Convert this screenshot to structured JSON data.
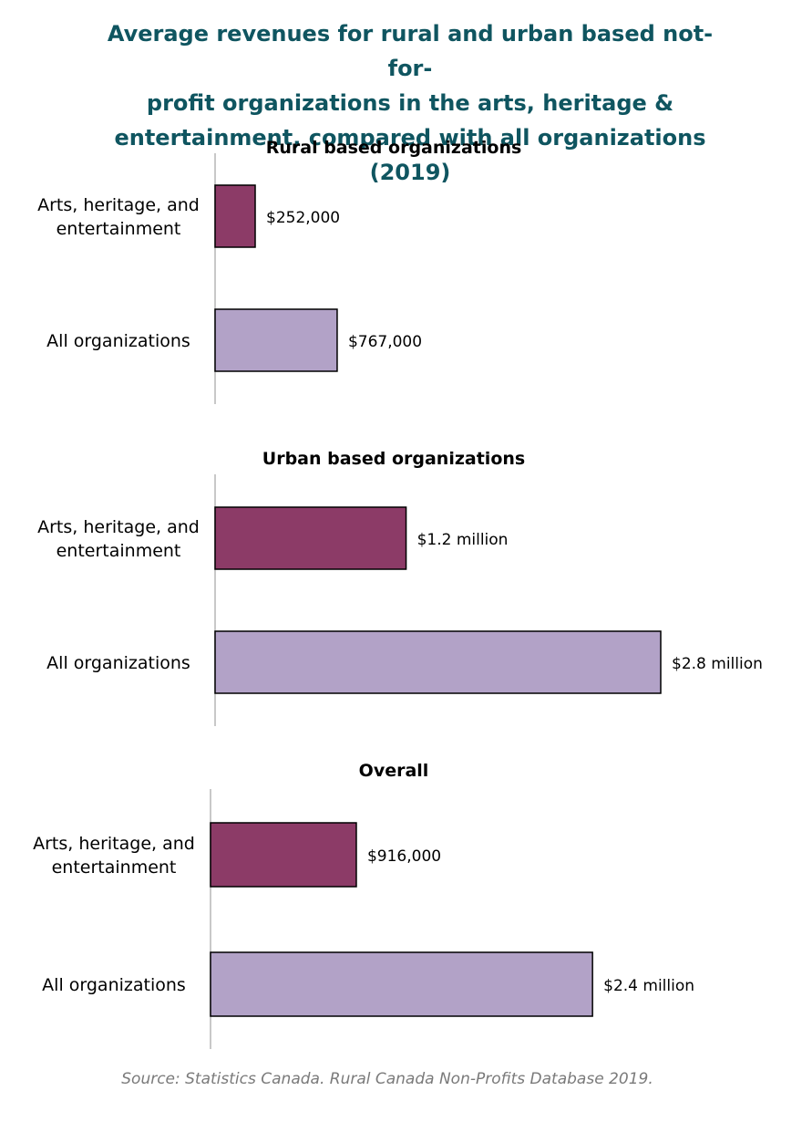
{
  "title_lines": [
    "Average revenues for rural and urban based not-for-",
    "profit organizations in the arts, heritage &",
    "entertainment, compared with all organizations (2019)"
  ],
  "source": "Source: Statistics Canada. Rural Canada Non-Profits Database 2019.",
  "colors": {
    "arts": "#8c3b67",
    "all": "#b2a2c7",
    "axis": "#c8c8c8",
    "title": "#0f5560"
  },
  "chart_data": [
    {
      "type": "bar",
      "orientation": "horizontal",
      "title": "Rural based organizations",
      "categories": [
        "Arts, heritage, and entertainment",
        "All organizations"
      ],
      "category_lines": [
        [
          "Arts, heritage, and",
          "entertainment"
        ],
        [
          "All organizations"
        ]
      ],
      "values": [
        252000,
        767000
      ],
      "labels": [
        "$252,000",
        "$767,000"
      ]
    },
    {
      "type": "bar",
      "orientation": "horizontal",
      "title": "Urban based organizations",
      "categories": [
        "Arts, heritage, and entertainment",
        "All organizations"
      ],
      "category_lines": [
        [
          "Arts, heritage, and",
          "entertainment"
        ],
        [
          "All organizations"
        ]
      ],
      "values": [
        1200000,
        2800000
      ],
      "labels": [
        "$1.2 million",
        "$2.8 million"
      ]
    },
    {
      "type": "bar",
      "orientation": "horizontal",
      "title": "Overall",
      "categories": [
        "Arts, heritage, and entertainment",
        "All organizations"
      ],
      "category_lines": [
        [
          "Arts, heritage, and",
          "entertainment"
        ],
        [
          "All organizations"
        ]
      ],
      "values": [
        916000,
        2400000
      ],
      "labels": [
        "$916,000",
        "$2.4 million"
      ]
    }
  ]
}
